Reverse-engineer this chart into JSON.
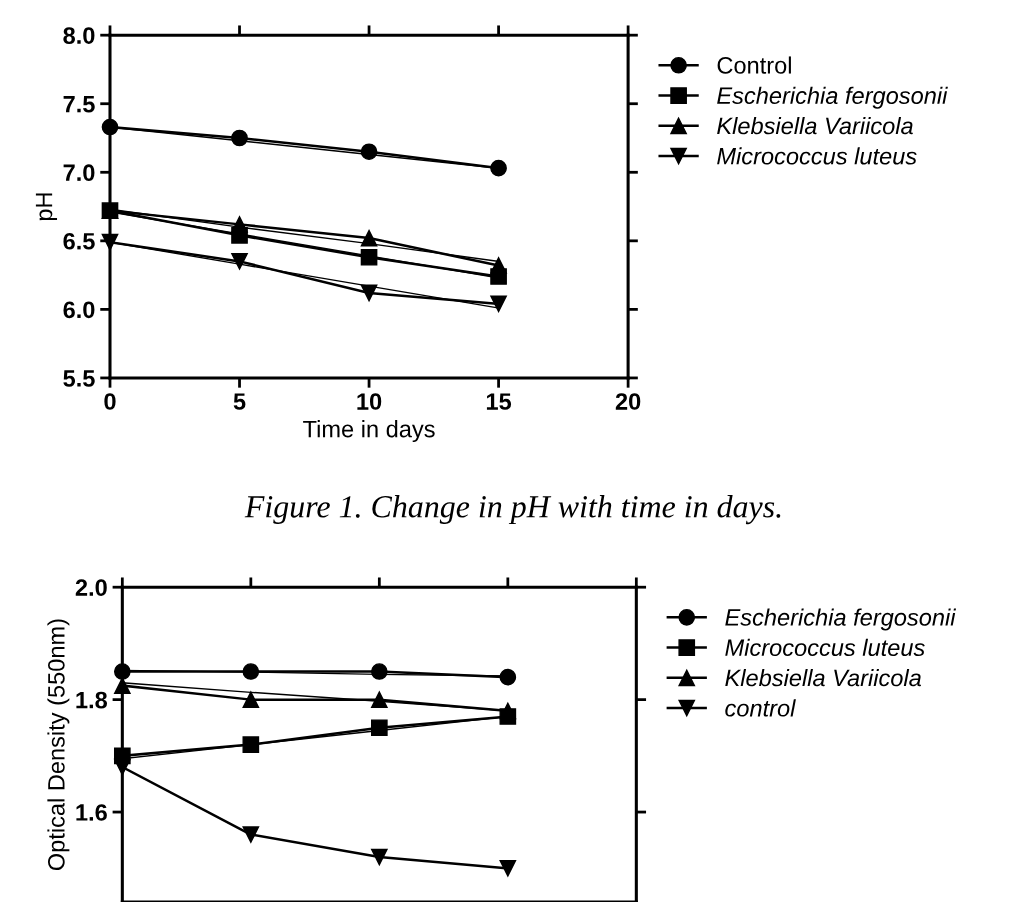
{
  "chart_data": [
    {
      "type": "line",
      "xlabel": "Time in days",
      "ylabel": "pH",
      "x": [
        0,
        5,
        10,
        15
      ],
      "xlim": [
        0,
        20
      ],
      "xticks": [
        0,
        5,
        10,
        15,
        20
      ],
      "ylim": [
        5.5,
        8.0
      ],
      "yticks": [
        {
          "value": 5.5,
          "label": "5.5"
        },
        {
          "value": 6.0,
          "label": "6.0"
        },
        {
          "value": 6.5,
          "label": "6.5"
        },
        {
          "value": 7.0,
          "label": "7.0"
        },
        {
          "value": 7.5,
          "label": "7.5"
        },
        {
          "value": 8.0,
          "label": "8.0"
        }
      ],
      "grid": false,
      "legend": "right",
      "line_style": "solid",
      "annotations": [
        "Figure 1. Change in pH with time in days."
      ],
      "series": [
        {
          "name": "Control",
          "color": "#000000",
          "marker": "circle",
          "values": [
            7.33,
            7.25,
            7.15,
            7.03
          ]
        },
        {
          "name": "Escherichia fergosonii",
          "color": "#000000",
          "marker": "square",
          "values": [
            6.72,
            6.54,
            6.38,
            6.24
          ]
        },
        {
          "name": "Klebsiella Variicola",
          "color": "#000000",
          "marker": "triangle",
          "values": [
            6.72,
            6.62,
            6.52,
            6.32
          ]
        },
        {
          "name": "Micrococcus luteus",
          "color": "#000000",
          "marker": "triangle_down",
          "values": [
            6.49,
            6.35,
            6.12,
            6.04
          ]
        },
        {
          "type": "line",
          "color": "#000000",
          "marker": "none",
          "values": [
            7.33,
            7.23,
            7.13,
            7.03
          ]
        },
        {
          "type": "line",
          "color": "#000000",
          "marker": "none",
          "values": [
            6.71,
            6.55,
            6.39,
            6.23
          ]
        },
        {
          "type": "line",
          "color": "#000000",
          "marker": "none",
          "values": [
            6.73,
            6.6,
            6.48,
            6.35
          ]
        },
        {
          "type": "line",
          "color": "#000000",
          "marker": "none",
          "values": [
            6.49,
            6.33,
            6.17,
            6.01
          ]
        }
      ]
    },
    {
      "type": "line",
      "ylabel": "Optical Density (550nm)",
      "categories": [
        null,
        null,
        null,
        null
      ],
      "ylim": [
        1.44,
        2.0
      ],
      "yticks": [
        {
          "value": 1.6,
          "label": "1.6"
        },
        {
          "value": 1.8,
          "label": "1.8"
        },
        {
          "value": 2.0,
          "label": "2.0"
        }
      ],
      "tick_labels": "y",
      "grid": false,
      "legend": "right",
      "line_style": "solid",
      "series": [
        {
          "name": "Escherichia fergosonii",
          "color": "#000000",
          "marker": "circle",
          "values": [
            1.85,
            1.85,
            1.85,
            1.84
          ]
        },
        {
          "name": "Micrococcus luteus",
          "color": "#000000",
          "marker": "square",
          "values": [
            1.7,
            1.72,
            1.75,
            1.77
          ]
        },
        {
          "name": "Klebsiella Variicola",
          "color": "#000000",
          "marker": "triangle",
          "values": [
            1.825,
            1.8,
            1.8,
            1.78
          ]
        },
        {
          "name": "control",
          "color": "#000000",
          "marker": "triangle_down",
          "values": [
            1.68,
            1.56,
            1.52,
            1.5
          ]
        },
        {
          "type": "line",
          "color": "#000000",
          "marker": "none",
          "values": [
            1.852,
            1.849,
            1.845,
            1.842
          ]
        },
        {
          "type": "line",
          "color": "#000000",
          "marker": "none",
          "values": [
            1.695,
            1.72,
            1.745,
            1.77
          ]
        },
        {
          "type": "line",
          "color": "#000000",
          "marker": "none",
          "values": [
            1.83,
            1.813,
            1.797,
            1.78
          ]
        }
      ]
    }
  ]
}
